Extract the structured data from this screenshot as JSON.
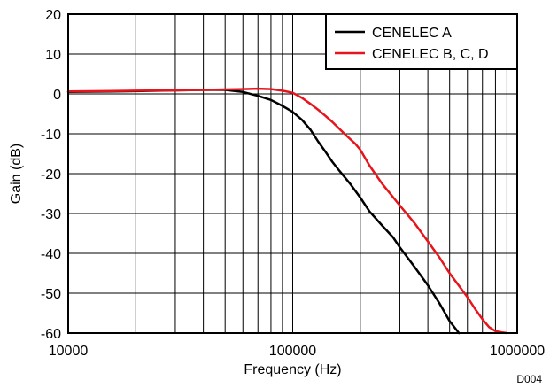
{
  "chart_data": {
    "type": "line",
    "xscale": "log",
    "xlim": [
      10000,
      1000000
    ],
    "ylim": [
      -60,
      20
    ],
    "xlabel": "Frequency (Hz)",
    "ylabel": "Gain (dB)",
    "xtick_labels": [
      "10000",
      "100000",
      "1000000"
    ],
    "xtick_values": [
      10000,
      100000,
      1000000
    ],
    "ytick_values": [
      20,
      10,
      0,
      -10,
      -20,
      -30,
      -40,
      -50,
      -60
    ],
    "ytick_labels": [
      "20",
      "10",
      "0",
      "-10",
      "-20",
      "-30",
      "-40",
      "-50",
      "-60"
    ],
    "grid": true,
    "legend_position": "top-right",
    "footnote": "D004",
    "series": [
      {
        "name": "CENELEC A",
        "color": "#000000",
        "x": [
          10000,
          20000,
          30000,
          40000,
          50000,
          60000,
          70000,
          80000,
          90000,
          100000,
          110000,
          120000,
          130000,
          140000,
          150000,
          160000,
          180000,
          200000,
          220000,
          250000,
          280000,
          300000,
          350000,
          400000,
          450000,
          500000,
          550000
        ],
        "y": [
          0.5,
          0.7,
          0.9,
          1.0,
          1.0,
          0.5,
          -0.5,
          -1.5,
          -3.0,
          -4.5,
          -6.5,
          -9.0,
          -12.0,
          -14.5,
          -17.0,
          -19.0,
          -22.5,
          -26.0,
          -29.5,
          -33.0,
          -36.0,
          -38.5,
          -43.5,
          -48.0,
          -52.5,
          -57.0,
          -60.0
        ]
      },
      {
        "name": "CENELEC B, C, D",
        "color": "#e8141b",
        "x": [
          10000,
          20000,
          30000,
          40000,
          50000,
          60000,
          70000,
          80000,
          90000,
          100000,
          110000,
          120000,
          130000,
          140000,
          150000,
          170000,
          190000,
          200000,
          220000,
          250000,
          300000,
          350000,
          400000,
          450000,
          500000,
          600000,
          650000,
          700000,
          750000,
          800000,
          850000,
          900000
        ],
        "y": [
          0.6,
          0.8,
          0.9,
          1.0,
          1.1,
          1.2,
          1.3,
          1.2,
          0.8,
          0.3,
          -1.0,
          -2.5,
          -4.0,
          -5.5,
          -7.0,
          -10.0,
          -12.5,
          -14.0,
          -18.0,
          -22.5,
          -28.0,
          -32.5,
          -37.0,
          -41.0,
          -45.0,
          -51.0,
          -54.0,
          -56.5,
          -58.5,
          -59.5,
          -59.8,
          -60.0
        ]
      }
    ]
  }
}
